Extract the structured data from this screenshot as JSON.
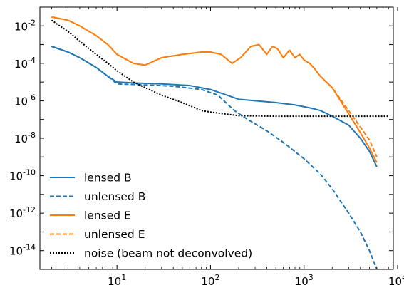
{
  "chart_data": {
    "type": "line",
    "xscale": "log",
    "yscale": "log",
    "xlim": [
      1.5,
      9000
    ],
    "ylim": [
      1e-15,
      0.1
    ],
    "x_ticks": [
      {
        "value": 10,
        "base": "10",
        "exp": "1"
      },
      {
        "value": 100,
        "base": "10",
        "exp": "2"
      },
      {
        "value": 1000,
        "base": "10",
        "exp": "3"
      },
      {
        "value": 10000,
        "base": "10",
        "exp": "4"
      }
    ],
    "y_ticks": [
      {
        "value": 0.01,
        "base": "10",
        "exp": "-2"
      },
      {
        "value": 0.0001,
        "base": "10",
        "exp": "-4"
      },
      {
        "value": 1e-06,
        "base": "10",
        "exp": "-6"
      },
      {
        "value": 1e-08,
        "base": "10",
        "exp": "-8"
      },
      {
        "value": 1e-10,
        "base": "10",
        "exp": "-10"
      },
      {
        "value": 1e-12,
        "base": "10",
        "exp": "-12"
      },
      {
        "value": 1e-14,
        "base": "10",
        "exp": "-14"
      }
    ],
    "legend_position": "lower-left",
    "grid": false,
    "series": [
      {
        "name": "lensed B",
        "color": "#1f77b4",
        "dash": "solid",
        "points": [
          [
            2,
            0.0008
          ],
          [
            3,
            0.0004
          ],
          [
            4,
            0.0002
          ],
          [
            6,
            6e-05
          ],
          [
            8,
            2e-05
          ],
          [
            10,
            1e-05
          ],
          [
            15,
            9e-06
          ],
          [
            30,
            8e-06
          ],
          [
            60,
            6.5e-06
          ],
          [
            100,
            4e-06
          ],
          [
            150,
            2e-06
          ],
          [
            200,
            1.2e-06
          ],
          [
            300,
            1e-06
          ],
          [
            500,
            8e-07
          ],
          [
            800,
            6e-07
          ],
          [
            1200,
            4e-07
          ],
          [
            1500,
            3e-07
          ],
          [
            2000,
            1.5e-07
          ],
          [
            3000,
            5e-08
          ],
          [
            4000,
            1e-08
          ],
          [
            5000,
            2e-09
          ],
          [
            6000,
            3e-10
          ]
        ]
      },
      {
        "name": "unlensed B",
        "color": "#1f77b4",
        "dash": "dashed",
        "points": [
          [
            2,
            0.0008
          ],
          [
            3,
            0.0004
          ],
          [
            4,
            0.0002
          ],
          [
            6,
            6e-05
          ],
          [
            8,
            2e-05
          ],
          [
            10,
            8e-06
          ],
          [
            20,
            7e-06
          ],
          [
            40,
            6e-06
          ],
          [
            80,
            4e-06
          ],
          [
            120,
            2e-06
          ],
          [
            180,
            3e-07
          ],
          [
            250,
            1e-07
          ],
          [
            400,
            2.5e-08
          ],
          [
            600,
            6e-09
          ],
          [
            1000,
            8e-10
          ],
          [
            1500,
            1.2e-10
          ],
          [
            2000,
            2e-11
          ],
          [
            3000,
            1e-12
          ],
          [
            4000,
            1e-13
          ],
          [
            5000,
            1e-14
          ],
          [
            6000,
            1e-15
          ]
        ]
      },
      {
        "name": "lensed E",
        "color": "#ff7f0e",
        "dash": "solid",
        "points": [
          [
            2,
            0.03
          ],
          [
            3,
            0.02
          ],
          [
            4,
            0.01
          ],
          [
            6,
            0.003
          ],
          [
            8,
            0.001
          ],
          [
            10,
            0.0003
          ],
          [
            15,
            0.0001
          ],
          [
            20,
            8e-05
          ],
          [
            30,
            0.0002
          ],
          [
            50,
            0.0003
          ],
          [
            80,
            0.0004
          ],
          [
            100,
            0.0004
          ],
          [
            130,
            0.0003
          ],
          [
            170,
            0.0001
          ],
          [
            210,
            0.0002
          ],
          [
            270,
            0.0008
          ],
          [
            330,
            0.001
          ],
          [
            400,
            0.0003
          ],
          [
            460,
            0.0008
          ],
          [
            520,
            0.0006
          ],
          [
            600,
            0.0002
          ],
          [
            700,
            0.0005
          ],
          [
            800,
            0.0002
          ],
          [
            900,
            0.0003
          ],
          [
            1000,
            0.00015
          ],
          [
            1150,
            0.0001
          ],
          [
            1300,
            5e-05
          ],
          [
            1500,
            2e-05
          ],
          [
            2000,
            5e-06
          ],
          [
            3000,
            2e-07
          ],
          [
            4000,
            2e-08
          ],
          [
            5000,
            3e-09
          ],
          [
            6000,
            5e-10
          ]
        ]
      },
      {
        "name": "unlensed E",
        "color": "#ff7f0e",
        "dash": "dashed",
        "points": [
          [
            2,
            0.03
          ],
          [
            3,
            0.02
          ],
          [
            4,
            0.01
          ],
          [
            6,
            0.003
          ],
          [
            8,
            0.001
          ],
          [
            10,
            0.0003
          ],
          [
            15,
            0.0001
          ],
          [
            20,
            8e-05
          ],
          [
            30,
            0.0002
          ],
          [
            50,
            0.0003
          ],
          [
            80,
            0.0004
          ],
          [
            100,
            0.0004
          ],
          [
            130,
            0.0003
          ],
          [
            170,
            0.0001
          ],
          [
            210,
            0.0002
          ],
          [
            270,
            0.0008
          ],
          [
            330,
            0.001
          ],
          [
            400,
            0.0003
          ],
          [
            460,
            0.0008
          ],
          [
            520,
            0.0006
          ],
          [
            600,
            0.0002
          ],
          [
            700,
            0.0005
          ],
          [
            800,
            0.0002
          ],
          [
            900,
            0.0003
          ],
          [
            1000,
            0.00015
          ],
          [
            1150,
            0.0001
          ],
          [
            1300,
            5e-05
          ],
          [
            1500,
            2e-05
          ],
          [
            2000,
            5e-06
          ],
          [
            3000,
            3e-07
          ],
          [
            4000,
            4e-08
          ],
          [
            5000,
            8e-09
          ],
          [
            6000,
            1e-09
          ]
        ]
      },
      {
        "name": "noise (beam not deconvolved)",
        "color": "#000000",
        "dash": "dotted",
        "points": [
          [
            2,
            0.02
          ],
          [
            3,
            0.005
          ],
          [
            4,
            0.0015
          ],
          [
            6,
            0.0003
          ],
          [
            8,
            0.0001
          ],
          [
            10,
            4e-05
          ],
          [
            15,
            1e-05
          ],
          [
            20,
            5e-06
          ],
          [
            30,
            2e-06
          ],
          [
            50,
            8e-07
          ],
          [
            80,
            3e-07
          ],
          [
            100,
            2.5e-07
          ],
          [
            200,
            1.6e-07
          ],
          [
            500,
            1.5e-07
          ],
          [
            1000,
            1.5e-07
          ],
          [
            3000,
            1.5e-07
          ],
          [
            8000,
            1.5e-07
          ]
        ]
      }
    ]
  }
}
